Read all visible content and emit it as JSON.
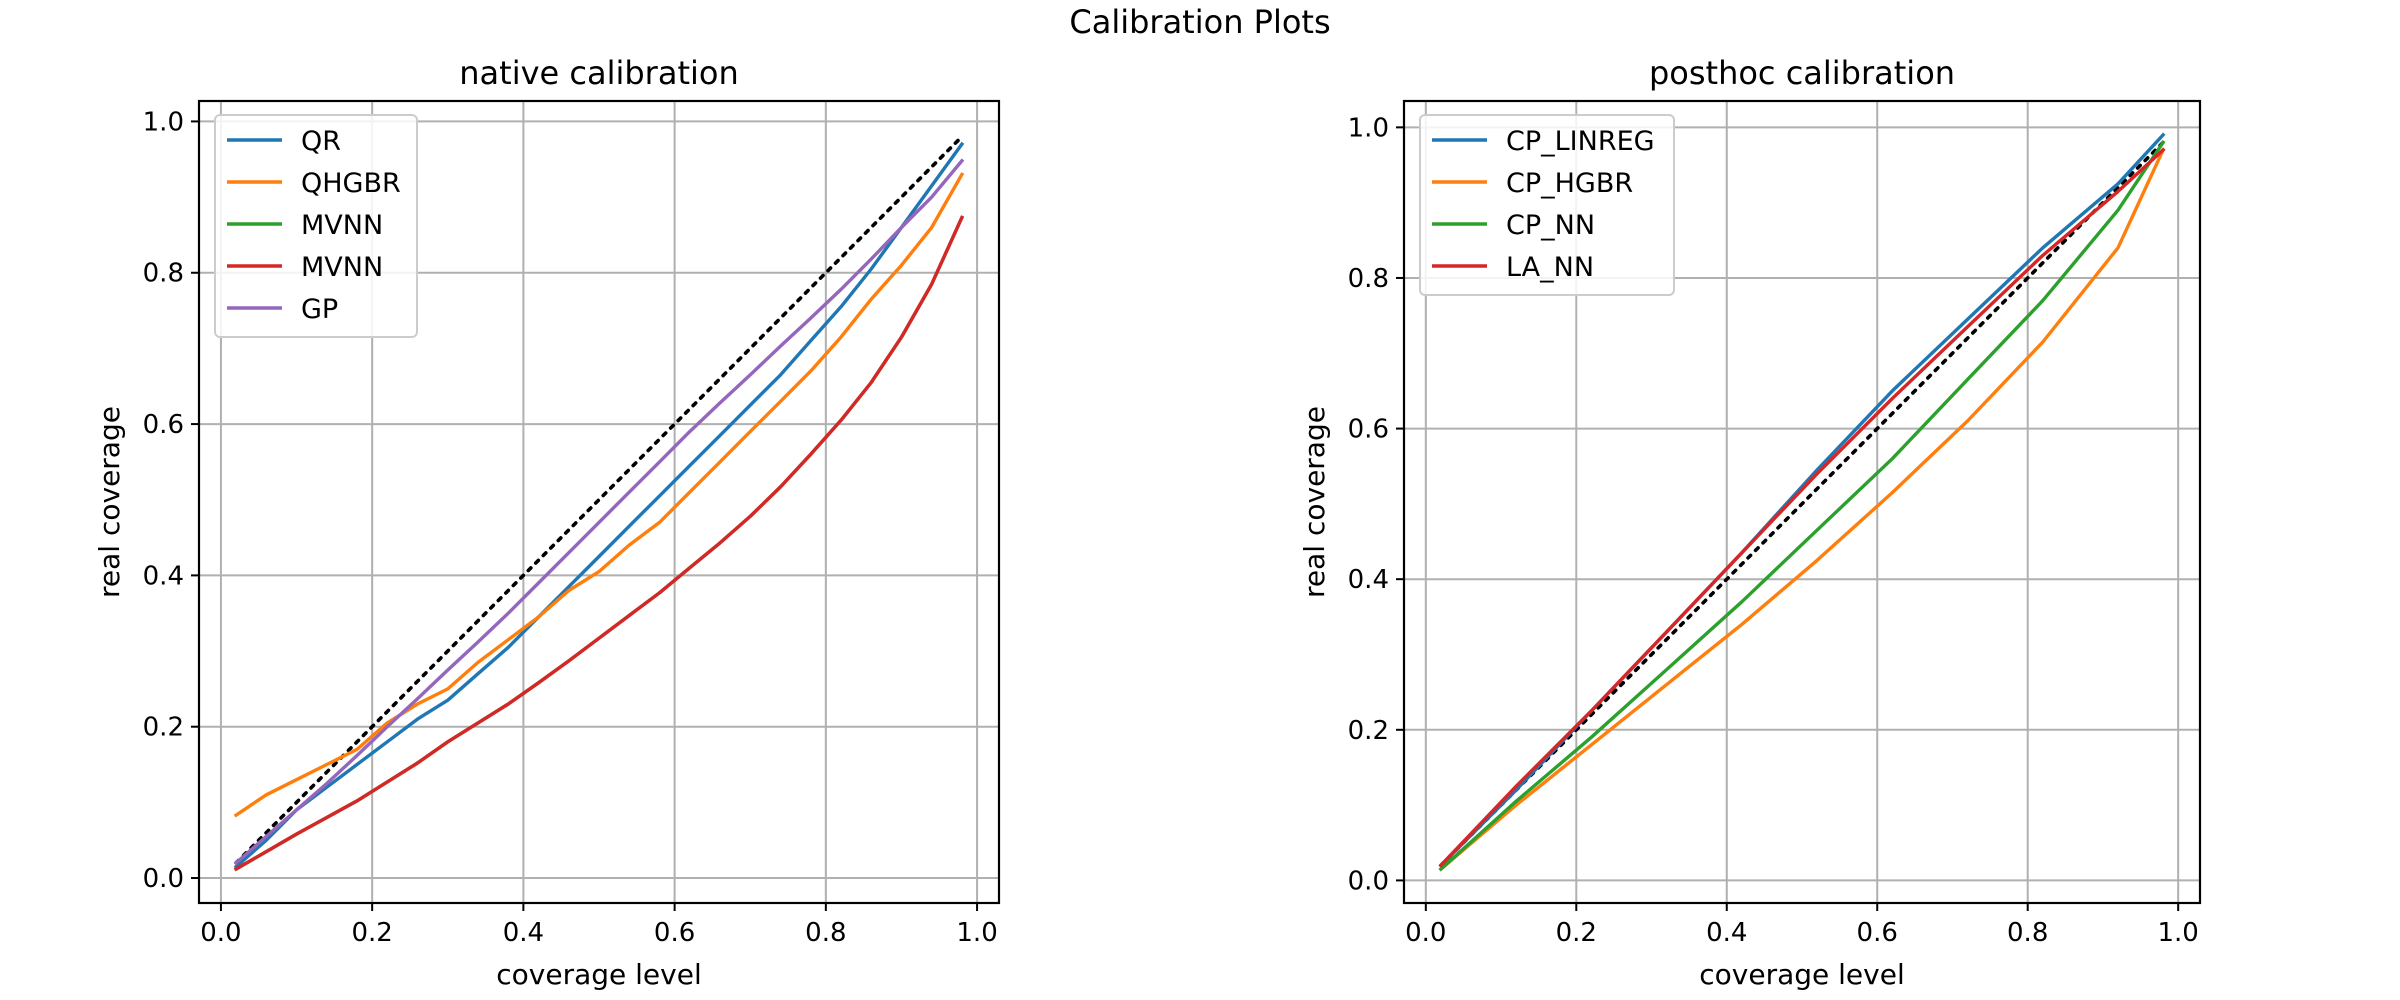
{
  "figure": {
    "title": "Calibration Plots"
  },
  "chart_data": [
    {
      "type": "line",
      "title": "native calibration",
      "xlabel": "coverage level",
      "ylabel": "real coverage",
      "xlim": [
        -0.029,
        1.029
      ],
      "ylim": [
        -0.033,
        1.027
      ],
      "xticks": [
        0.0,
        0.2,
        0.4,
        0.6,
        0.8,
        1.0
      ],
      "xtick_labels": [
        "0.0",
        "0.2",
        "0.4",
        "0.6",
        "0.8",
        "1.0"
      ],
      "yticks": [
        0.0,
        0.2,
        0.4,
        0.6,
        0.8,
        1.0
      ],
      "ytick_labels": [
        "0.0",
        "0.2",
        "0.4",
        "0.6",
        "0.8",
        "1.0"
      ],
      "grid": true,
      "legend_position": "upper-left",
      "reference_line": {
        "style": "dotted",
        "color": "#000000",
        "x": [
          0.02,
          0.98
        ],
        "y": [
          0.02,
          0.98
        ]
      },
      "x": [
        0.02,
        0.06,
        0.1,
        0.14,
        0.18,
        0.22,
        0.26,
        0.3,
        0.34,
        0.38,
        0.42,
        0.46,
        0.5,
        0.54,
        0.58,
        0.62,
        0.66,
        0.7,
        0.74,
        0.78,
        0.82,
        0.86,
        0.9,
        0.94,
        0.98
      ],
      "series": [
        {
          "name": "QR",
          "color": "#1f77b4",
          "values": [
            0.015,
            0.05,
            0.09,
            0.12,
            0.15,
            0.18,
            0.21,
            0.235,
            0.27,
            0.305,
            0.345,
            0.385,
            0.425,
            0.465,
            0.505,
            0.545,
            0.585,
            0.625,
            0.665,
            0.71,
            0.755,
            0.805,
            0.86,
            0.915,
            0.97
          ]
        },
        {
          "name": "QHGBR",
          "color": "#ff7f0e",
          "values": [
            0.083,
            0.11,
            0.13,
            0.15,
            0.17,
            0.205,
            0.23,
            0.25,
            0.285,
            0.315,
            0.345,
            0.38,
            0.405,
            0.44,
            0.47,
            0.51,
            0.55,
            0.59,
            0.63,
            0.67,
            0.715,
            0.765,
            0.81,
            0.86,
            0.93
          ]
        },
        {
          "name": "MVNN",
          "color": "#2ca02c",
          "values": [
            0.012,
            0.035,
            0.058,
            0.08,
            0.102,
            0.127,
            0.152,
            0.18,
            0.205,
            0.23,
            0.258,
            0.287,
            0.317,
            0.347,
            0.377,
            0.41,
            0.443,
            0.478,
            0.517,
            0.56,
            0.605,
            0.655,
            0.715,
            0.785,
            0.873
          ]
        },
        {
          "name": "MVNN",
          "color": "#d62728",
          "values": [
            0.012,
            0.035,
            0.058,
            0.08,
            0.102,
            0.127,
            0.152,
            0.18,
            0.205,
            0.23,
            0.258,
            0.287,
            0.317,
            0.347,
            0.377,
            0.41,
            0.443,
            0.478,
            0.517,
            0.56,
            0.605,
            0.655,
            0.715,
            0.785,
            0.873
          ]
        },
        {
          "name": "GP",
          "color": "#9467bd",
          "values": [
            0.02,
            0.055,
            0.09,
            0.125,
            0.162,
            0.2,
            0.237,
            0.275,
            0.312,
            0.35,
            0.39,
            0.43,
            0.47,
            0.51,
            0.55,
            0.59,
            0.628,
            0.665,
            0.703,
            0.74,
            0.778,
            0.818,
            0.86,
            0.9,
            0.948
          ]
        }
      ]
    },
    {
      "type": "line",
      "title": "posthoc calibration",
      "xlabel": "coverage level",
      "ylabel": "real coverage",
      "xlim": [
        -0.029,
        1.029
      ],
      "ylim": [
        -0.03,
        1.035
      ],
      "xticks": [
        0.0,
        0.2,
        0.4,
        0.6,
        0.8,
        1.0
      ],
      "xtick_labels": [
        "0.0",
        "0.2",
        "0.4",
        "0.6",
        "0.8",
        "1.0"
      ],
      "yticks": [
        0.0,
        0.2,
        0.4,
        0.6,
        0.8,
        1.0
      ],
      "ytick_labels": [
        "0.0",
        "0.2",
        "0.4",
        "0.6",
        "0.8",
        "1.0"
      ],
      "grid": true,
      "legend_position": "upper-left",
      "reference_line": {
        "style": "dotted",
        "color": "#000000",
        "x": [
          0.02,
          0.98
        ],
        "y": [
          0.02,
          0.98
        ]
      },
      "x": [
        0.02,
        0.12,
        0.22,
        0.32,
        0.42,
        0.52,
        0.62,
        0.72,
        0.82,
        0.92,
        0.98
      ],
      "series": [
        {
          "name": "CP_LINREG",
          "color": "#1f77b4",
          "values": [
            0.02,
            0.12,
            0.225,
            0.33,
            0.435,
            0.545,
            0.65,
            0.745,
            0.84,
            0.925,
            0.99
          ]
        },
        {
          "name": "CP_HGBR",
          "color": "#ff7f0e",
          "values": [
            0.015,
            0.1,
            0.18,
            0.26,
            0.34,
            0.425,
            0.515,
            0.61,
            0.715,
            0.84,
            0.97
          ]
        },
        {
          "name": "CP_NN",
          "color": "#2ca02c",
          "values": [
            0.015,
            0.105,
            0.19,
            0.28,
            0.37,
            0.465,
            0.56,
            0.665,
            0.77,
            0.89,
            0.98
          ]
        },
        {
          "name": "LA_NN",
          "color": "#d62728",
          "values": [
            0.02,
            0.125,
            0.225,
            0.33,
            0.435,
            0.54,
            0.64,
            0.735,
            0.83,
            0.915,
            0.97
          ]
        }
      ]
    }
  ]
}
